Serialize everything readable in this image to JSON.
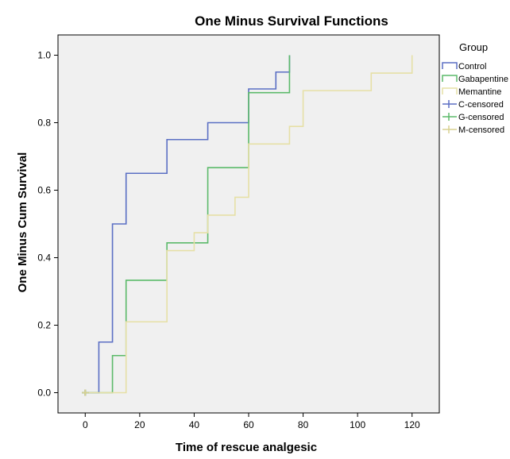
{
  "chart_data": {
    "type": "line",
    "title": "One Minus Survival Functions",
    "xlabel": "Time of rescue analgesic",
    "ylabel": "One Minus Cum Survival",
    "xlim": [
      -10,
      130
    ],
    "ylim": [
      -0.06,
      1.06
    ],
    "xticks": [
      0,
      20,
      40,
      60,
      80,
      100,
      120
    ],
    "yticks": [
      "0.0",
      "0.2",
      "0.4",
      "0.6",
      "0.8",
      "1.0"
    ],
    "grid": false,
    "legend_position": "right",
    "legend_title": "Group",
    "series": [
      {
        "name": "Control",
        "color": "#5b6fc4",
        "step": true,
        "x": [
          0,
          5,
          10,
          15,
          30,
          45,
          60,
          70,
          75
        ],
        "y": [
          0,
          0.15,
          0.5,
          0.65,
          0.75,
          0.8,
          0.9,
          0.95,
          1.0
        ]
      },
      {
        "name": "Gabapentine",
        "color": "#5cba6a",
        "step": true,
        "x": [
          0,
          10,
          15,
          30,
          45,
          60,
          75
        ],
        "y": [
          0,
          0.11,
          0.333,
          0.444,
          0.667,
          0.889,
          1.0
        ]
      },
      {
        "name": "Memantine",
        "color": "#e6e0a6",
        "step": true,
        "x": [
          0,
          15,
          30,
          40,
          45,
          55,
          60,
          75,
          80,
          105,
          120
        ],
        "y": [
          0,
          0.21,
          0.421,
          0.474,
          0.526,
          0.579,
          0.737,
          0.789,
          0.895,
          0.947,
          1.0
        ]
      }
    ],
    "censored": [
      {
        "name": "C-censored",
        "color": "#5b6fc4",
        "x": [
          0
        ],
        "y": [
          0
        ]
      },
      {
        "name": "G-censored",
        "color": "#5cba6a",
        "x": [
          0
        ],
        "y": [
          0
        ]
      },
      {
        "name": "M-censored",
        "color": "#d8d190",
        "x": [
          0
        ],
        "y": [
          0
        ]
      }
    ]
  }
}
